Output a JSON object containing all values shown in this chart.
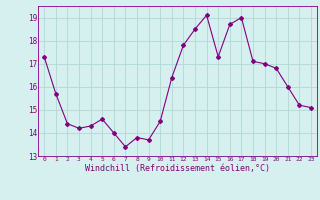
{
  "x": [
    0,
    1,
    2,
    3,
    4,
    5,
    6,
    7,
    8,
    9,
    10,
    11,
    12,
    13,
    14,
    15,
    16,
    17,
    18,
    19,
    20,
    21,
    22,
    23
  ],
  "y": [
    17.3,
    15.7,
    14.4,
    14.2,
    14.3,
    14.6,
    14.0,
    13.4,
    13.8,
    13.7,
    14.5,
    16.4,
    17.8,
    18.5,
    19.1,
    17.3,
    18.7,
    19.0,
    17.1,
    17.0,
    16.8,
    16.0,
    15.2,
    15.1
  ],
  "line_color": "#800080",
  "marker": "D",
  "markersize": 2,
  "linewidth": 0.8,
  "bg_color": "#d6f0f0",
  "grid_color": "#b0d8d8",
  "xlabel": "Windchill (Refroidissement éolien,°C)",
  "xlabel_fontsize": 6,
  "ytick_labels": [
    13,
    14,
    15,
    16,
    17,
    18,
    19
  ],
  "xtick_labels": [
    0,
    1,
    2,
    3,
    4,
    5,
    6,
    7,
    8,
    9,
    10,
    11,
    12,
    13,
    14,
    15,
    16,
    17,
    18,
    19,
    20,
    21,
    22,
    23
  ],
  "ylim": [
    13.0,
    19.5
  ],
  "xlim": [
    -0.5,
    23.5
  ]
}
